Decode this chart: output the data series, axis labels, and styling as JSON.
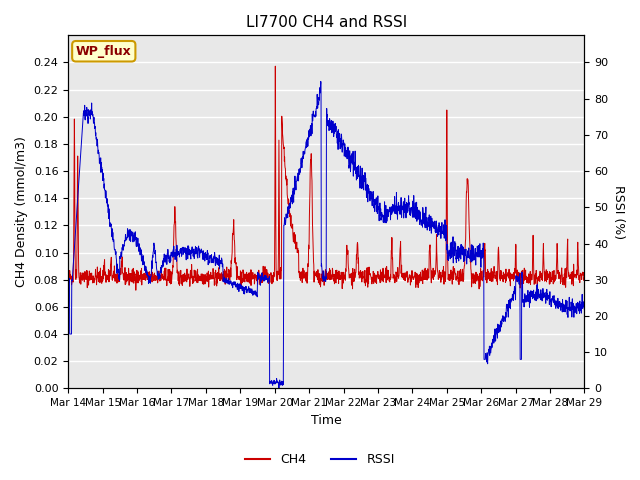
{
  "title": "LI7700 CH4 and RSSI",
  "xlabel": "Time",
  "ylabel_left": "CH4 Density (mmol/m3)",
  "ylabel_right": "RSSI (%)",
  "ylim_left": [
    0,
    0.26
  ],
  "ylim_right": [
    0,
    97.5
  ],
  "yticks_left": [
    0.0,
    0.02,
    0.04,
    0.06,
    0.08,
    0.1,
    0.12,
    0.14,
    0.16,
    0.18,
    0.2,
    0.22,
    0.24
  ],
  "yticks_right": [
    0,
    10,
    20,
    30,
    40,
    50,
    60,
    70,
    80,
    90
  ],
  "background_color": "#e8e8e8",
  "ch4_color": "#cc0000",
  "rssi_color": "#0000cc",
  "legend_labels": [
    "CH4",
    "RSSI"
  ],
  "annotation_text": "WP_flux",
  "annotation_bg": "#ffffcc",
  "annotation_border": "#cc9900",
  "x_tick_labels": [
    "Mar 14",
    "Mar 15",
    "Mar 16",
    "Mar 17",
    "Mar 18",
    "Mar 19",
    "Mar 20",
    "Mar 21",
    "Mar 22",
    "Mar 23",
    "Mar 24",
    "Mar 25",
    "Mar 26",
    "Mar 27",
    "Mar 28",
    "Mar 29"
  ],
  "n_points": 2000,
  "figsize": [
    6.4,
    4.8
  ],
  "dpi": 100
}
